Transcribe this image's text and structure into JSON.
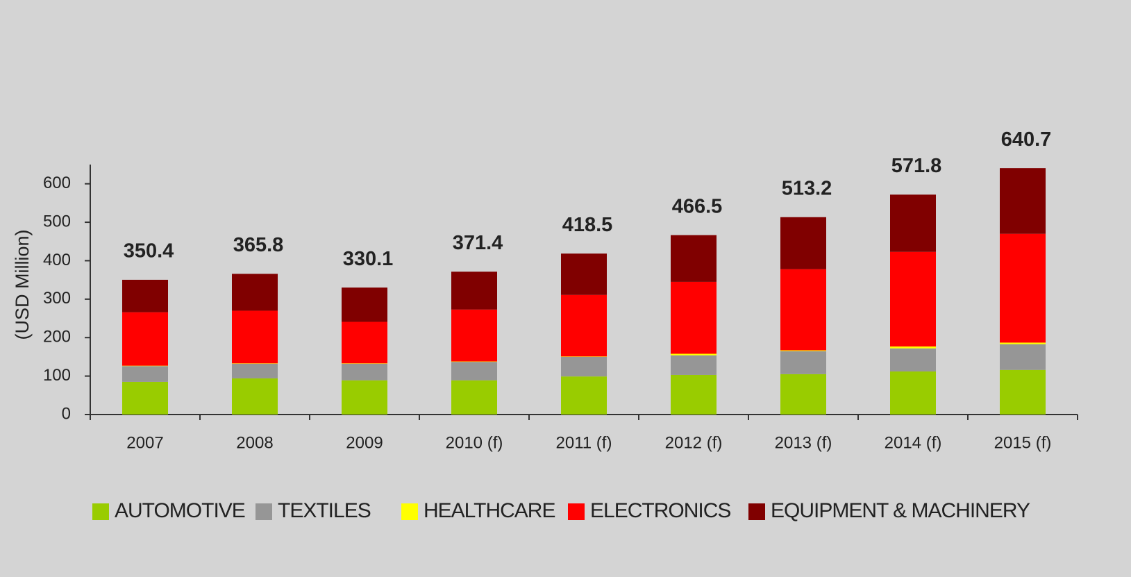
{
  "chart_data": {
    "type": "stacked_bar",
    "y_label": "(USD Million)",
    "categories": [
      "2007",
      "2008",
      "2009",
      "2010 (f)",
      "2011 (f)",
      "2012 (f)",
      "2013 (f)",
      "2014 (f)",
      "2015 (f)"
    ],
    "series": [
      {
        "name": "AUTOMOTIVE",
        "color": "#99cc00",
        "values": [
          85,
          94,
          89,
          89,
          99,
          103,
          105,
          112,
          116
        ]
      },
      {
        "name": "TEXTILES",
        "color": "#969696",
        "values": [
          41,
          38,
          43,
          48,
          51,
          51,
          60,
          60,
          67
        ]
      },
      {
        "name": "HEALTHCARE",
        "color": "#ffff00",
        "values": [
          1,
          1,
          1,
          1,
          1,
          4,
          2,
          5,
          4
        ]
      },
      {
        "name": "ELECTRONICS",
        "color": "#ff0000",
        "values": [
          139,
          137,
          108,
          135,
          160,
          187,
          211,
          246,
          283
        ]
      },
      {
        "name": "EQUIPMENT & MACHINERY",
        "color": "#800000",
        "values": [
          84.4,
          95.8,
          89.1,
          98.4,
          107.5,
          121.5,
          135.2,
          148.8,
          170.7
        ]
      }
    ],
    "totals": [
      350.4,
      365.8,
      330.1,
      371.4,
      418.5,
      466.5,
      513.2,
      571.8,
      640.7
    ],
    "ylim": [
      0,
      650
    ],
    "yticks": [
      0,
      100,
      200,
      300,
      400,
      500,
      600
    ],
    "grid": false,
    "legend": "bottom"
  }
}
